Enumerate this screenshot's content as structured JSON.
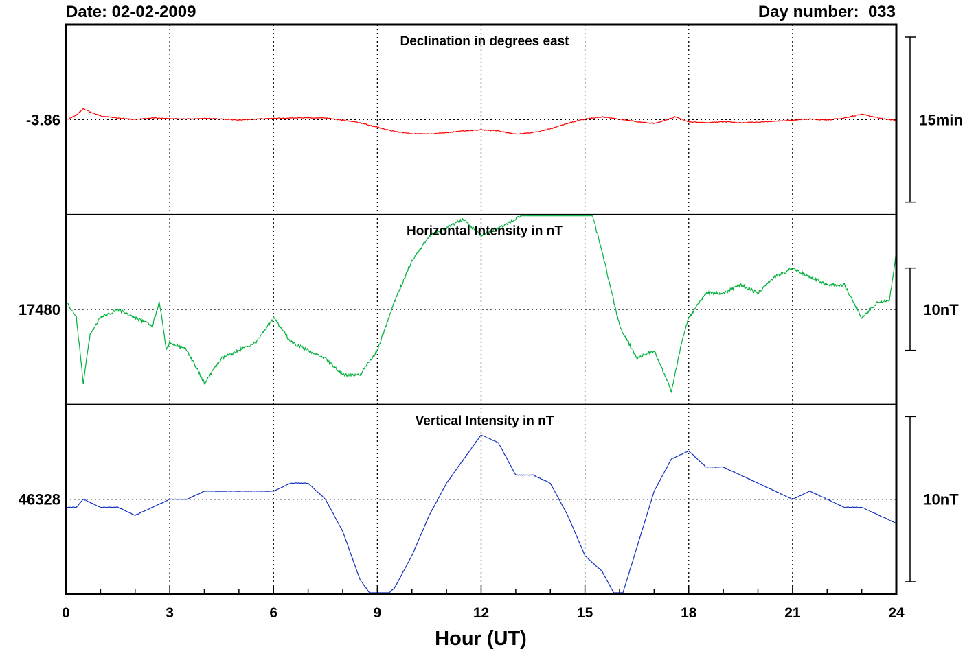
{
  "header": {
    "date": "Date: 02-02-2009",
    "day_number": "Day number:  033"
  },
  "chart_data": {
    "type": "line",
    "xlabel": "Hour (UT)",
    "xlim": [
      0,
      24
    ],
    "xticks": [
      0,
      3,
      6,
      9,
      12,
      15,
      18,
      21,
      24
    ],
    "grid": true,
    "panels": [
      {
        "title": "Declination in degrees east",
        "baseline_label": "-3.86",
        "baseline_value": -3.86,
        "scale_label": "15min",
        "color": "#ff0000",
        "units_per_panel": 0.35,
        "points": [
          [
            0,
            -3.861
          ],
          [
            0.3,
            -3.852
          ],
          [
            0.5,
            -3.84
          ],
          [
            0.7,
            -3.846
          ],
          [
            1.0,
            -3.853
          ],
          [
            1.5,
            -3.857
          ],
          [
            2.0,
            -3.86
          ],
          [
            2.5,
            -3.857
          ],
          [
            3.0,
            -3.858
          ],
          [
            3.5,
            -3.859
          ],
          [
            4.0,
            -3.858
          ],
          [
            4.5,
            -3.859
          ],
          [
            5.0,
            -3.861
          ],
          [
            5.5,
            -3.859
          ],
          [
            6.0,
            -3.858
          ],
          [
            6.5,
            -3.857
          ],
          [
            7.0,
            -3.857
          ],
          [
            7.5,
            -3.857
          ],
          [
            8.0,
            -3.861
          ],
          [
            8.5,
            -3.866
          ],
          [
            9.0,
            -3.874
          ],
          [
            9.5,
            -3.882
          ],
          [
            10.0,
            -3.886
          ],
          [
            10.5,
            -3.887
          ],
          [
            11.0,
            -3.884
          ],
          [
            11.5,
            -3.881
          ],
          [
            12.0,
            -3.879
          ],
          [
            12.5,
            -3.881
          ],
          [
            13.0,
            -3.887
          ],
          [
            13.5,
            -3.884
          ],
          [
            14.0,
            -3.877
          ],
          [
            14.5,
            -3.867
          ],
          [
            15.0,
            -3.859
          ],
          [
            15.5,
            -3.855
          ],
          [
            16.0,
            -3.859
          ],
          [
            16.5,
            -3.864
          ],
          [
            17.0,
            -3.867
          ],
          [
            17.3,
            -3.862
          ],
          [
            17.6,
            -3.855
          ],
          [
            18.0,
            -3.864
          ],
          [
            18.5,
            -3.866
          ],
          [
            19.0,
            -3.864
          ],
          [
            19.5,
            -3.866
          ],
          [
            20.0,
            -3.865
          ],
          [
            20.5,
            -3.863
          ],
          [
            21.0,
            -3.861
          ],
          [
            21.5,
            -3.859
          ],
          [
            22.0,
            -3.861
          ],
          [
            22.5,
            -3.857
          ],
          [
            23.0,
            -3.85
          ],
          [
            23.5,
            -3.857
          ],
          [
            24.0,
            -3.862
          ]
        ]
      },
      {
        "title": "Horizontal Intensity in nT",
        "baseline_label": "17480",
        "baseline_value": 17480,
        "scale_label": "10nT",
        "color": "#00b03c",
        "units_per_panel": 23.2,
        "points": [
          [
            0,
            17481
          ],
          [
            0.3,
            17479
          ],
          [
            0.5,
            17471
          ],
          [
            0.7,
            17477
          ],
          [
            1.0,
            17479
          ],
          [
            1.5,
            17480
          ],
          [
            2.0,
            17479
          ],
          [
            2.5,
            17478
          ],
          [
            2.7,
            17481
          ],
          [
            2.9,
            17475
          ],
          [
            3.0,
            17476
          ],
          [
            3.5,
            17475
          ],
          [
            4.0,
            17471
          ],
          [
            4.5,
            17474
          ],
          [
            5.0,
            17475
          ],
          [
            5.5,
            17476
          ],
          [
            6.0,
            17479
          ],
          [
            6.5,
            17476
          ],
          [
            7.0,
            17475
          ],
          [
            7.5,
            17474
          ],
          [
            8.0,
            17472
          ],
          [
            8.5,
            17472
          ],
          [
            9.0,
            17475
          ],
          [
            9.5,
            17481
          ],
          [
            10.0,
            17486
          ],
          [
            10.5,
            17489
          ],
          [
            11.0,
            17490
          ],
          [
            11.5,
            17491
          ],
          [
            12.0,
            17489
          ],
          [
            12.5,
            17490
          ],
          [
            13.0,
            17491
          ],
          [
            13.5,
            17493
          ],
          [
            14.0,
            17496
          ],
          [
            14.5,
            17498
          ],
          [
            14.8,
            17498
          ],
          [
            15.0,
            17495
          ],
          [
            15.5,
            17487
          ],
          [
            16.0,
            17478
          ],
          [
            16.5,
            17474
          ],
          [
            17.0,
            17475
          ],
          [
            17.5,
            17470
          ],
          [
            17.8,
            17476
          ],
          [
            18.0,
            17479
          ],
          [
            18.5,
            17482
          ],
          [
            19.0,
            17482
          ],
          [
            19.5,
            17483
          ],
          [
            20.0,
            17482
          ],
          [
            20.5,
            17484
          ],
          [
            21.0,
            17485
          ],
          [
            21.5,
            17484
          ],
          [
            22.0,
            17483
          ],
          [
            22.5,
            17483
          ],
          [
            23.0,
            17479
          ],
          [
            23.5,
            17481
          ],
          [
            23.8,
            17481
          ],
          [
            24.0,
            17487
          ]
        ]
      },
      {
        "title": "Vertical Intensity in nT",
        "baseline_label": "46328",
        "baseline_value": 46328,
        "scale_label": "10nT",
        "color": "#1030c0",
        "units_per_panel": 23.6,
        "points": [
          [
            0,
            46327
          ],
          [
            0.3,
            46327
          ],
          [
            0.5,
            46328
          ],
          [
            1.0,
            46327
          ],
          [
            1.5,
            46327
          ],
          [
            2.0,
            46326
          ],
          [
            2.5,
            46327
          ],
          [
            3.0,
            46328
          ],
          [
            3.5,
            46328
          ],
          [
            4.0,
            46329
          ],
          [
            4.5,
            46329
          ],
          [
            5.0,
            46329
          ],
          [
            5.5,
            46329
          ],
          [
            6.0,
            46329
          ],
          [
            6.5,
            46330
          ],
          [
            7.0,
            46330
          ],
          [
            7.5,
            46328
          ],
          [
            8.0,
            46324
          ],
          [
            8.5,
            46318
          ],
          [
            9.0,
            46315
          ],
          [
            9.5,
            46317
          ],
          [
            10.0,
            46321
          ],
          [
            10.5,
            46326
          ],
          [
            11.0,
            46330
          ],
          [
            11.5,
            46333
          ],
          [
            12.0,
            46336
          ],
          [
            12.5,
            46335
          ],
          [
            13.0,
            46331
          ],
          [
            13.5,
            46331
          ],
          [
            14.0,
            46330
          ],
          [
            14.5,
            46326
          ],
          [
            15.0,
            46321
          ],
          [
            15.5,
            46319
          ],
          [
            16.0,
            46315
          ],
          [
            16.5,
            46322
          ],
          [
            17.0,
            46329
          ],
          [
            17.5,
            46333
          ],
          [
            18.0,
            46334
          ],
          [
            18.5,
            46332
          ],
          [
            19.0,
            46332
          ],
          [
            19.5,
            46331
          ],
          [
            20.0,
            46330
          ],
          [
            20.5,
            46329
          ],
          [
            21.0,
            46328
          ],
          [
            21.5,
            46329
          ],
          [
            22.0,
            46328
          ],
          [
            22.5,
            46327
          ],
          [
            23.0,
            46327
          ],
          [
            23.5,
            46326
          ],
          [
            24.0,
            46325
          ]
        ]
      }
    ]
  }
}
